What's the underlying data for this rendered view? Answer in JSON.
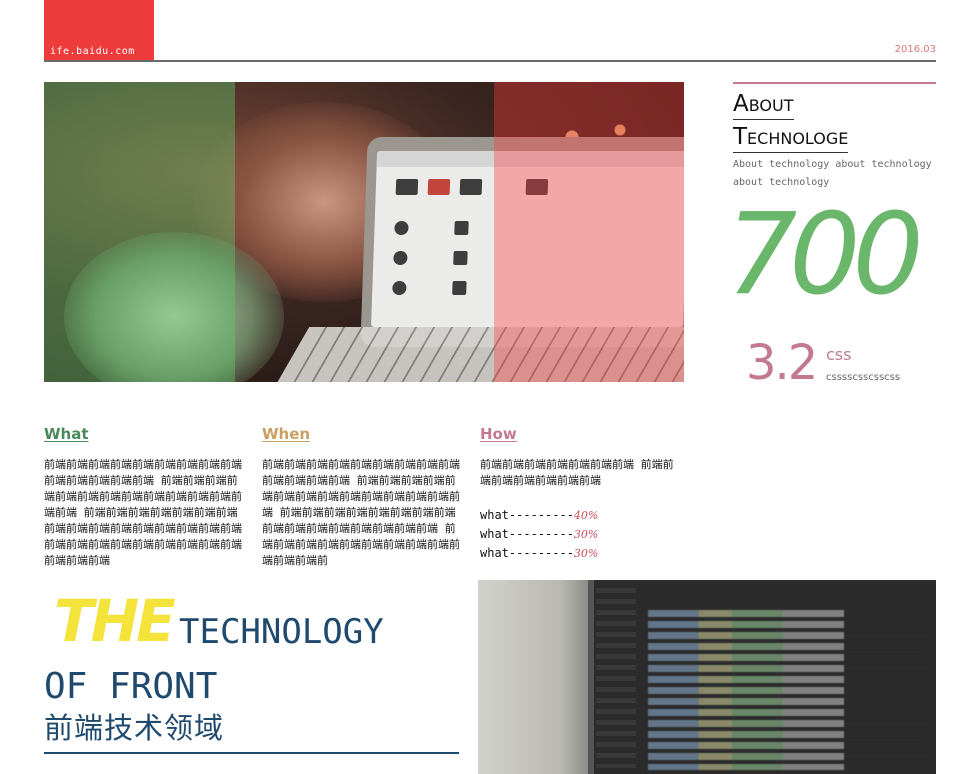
{
  "header": {
    "logo_text": "ife.baidu.com",
    "date": "2016.03"
  },
  "about": {
    "title_line1": "About",
    "title_line2": "Technologe",
    "description": "About technology about technology about technology",
    "big_number": "700",
    "secondary_number": "3.2",
    "secondary_label": "css",
    "secondary_sub": "csssscsscsscss"
  },
  "columns": {
    "what": {
      "heading": "What",
      "text": "前端前端前端前端前端前端前端前端前端前端前端前端前端前端 前端前端前端前端前端前端前端前端前端前端前端前端前端前端 前端前端前端前端前端前端前端前端前端前端前端前端前端前端前端前端 前端前端前端前端前端前端前端前端前端前端前端前端"
    },
    "when": {
      "heading": "When",
      "text": "前端前端前端前端前端前端前端前端前端前端前端前端前端 前端前端前端前端前端前端前端前端前端前端前端前端前端前端 前端前端前端前端前端前端前端前端前端前端前端前端前端前端前端前端 前端前端前端前端前端前端前端前端前端前端前端前端前"
    },
    "how": {
      "heading": "How",
      "text": "前端前端前端前端前端前端前端 前端前端前端前端前端前端前端",
      "stats": [
        {
          "label": "what---------",
          "value": "40%"
        },
        {
          "label": "what---------",
          "value": "30%"
        },
        {
          "label": "what---------",
          "value": "30%"
        }
      ]
    }
  },
  "headline": {
    "the": "THE",
    "technology": "TECHNOLOGY",
    "of_front": "OF FRONT",
    "chinese": "前端技术领域"
  },
  "colors": {
    "logo_red": "#ee3b3b",
    "accent_green": "#6ab66a",
    "accent_pink": "#c47a8e",
    "accent_gold": "#c9a062",
    "headline_yellow": "#f3e33a",
    "headline_navy": "#1f4a6e"
  }
}
